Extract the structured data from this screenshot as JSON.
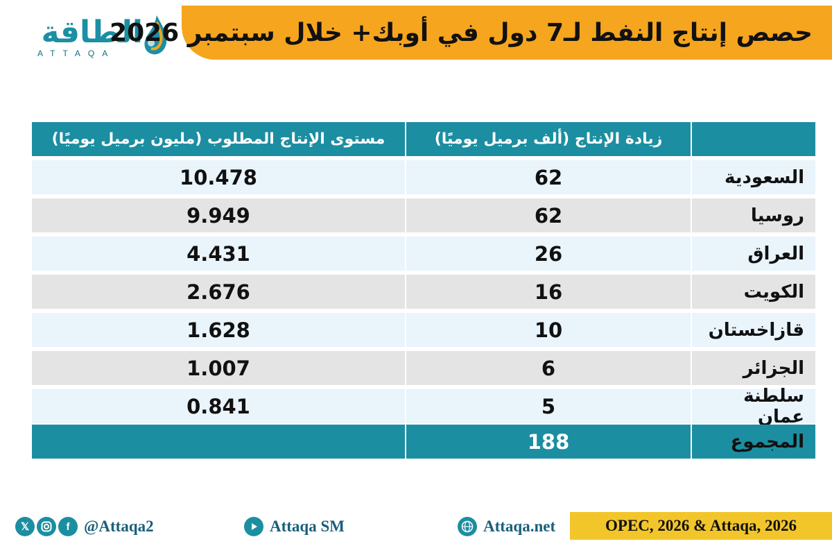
{
  "header": {
    "title": "حصص إنتاج النفط لـ7 دول في أوبك+ خلال سبتمبر 2026"
  },
  "logo": {
    "arabic": "الطاقة",
    "latin": "ATTAQA"
  },
  "table": {
    "headers": {
      "country": "",
      "increase": "زيادة الإنتاج (ألف برميل يوميًا)",
      "required_level": "مستوى الإنتاج المطلوب (مليون برميل يوميًا)"
    },
    "rows": [
      {
        "country": "السعودية",
        "increase": "62",
        "required_level": "10.478"
      },
      {
        "country": "روسيا",
        "increase": "62",
        "required_level": "9.949"
      },
      {
        "country": "العراق",
        "increase": "26",
        "required_level": "4.431"
      },
      {
        "country": "الكويت",
        "increase": "16",
        "required_level": "2.676"
      },
      {
        "country": "قازاخستان",
        "increase": "10",
        "required_level": "1.628"
      },
      {
        "country": "الجزائر",
        "increase": "6",
        "required_level": "1.007"
      },
      {
        "country": "سلطنة عمان",
        "increase": "5",
        "required_level": "0.841"
      }
    ],
    "total": {
      "label": "المجموع",
      "increase": "188",
      "required_level": ""
    }
  },
  "footer": {
    "social_handle": "@Attaqa2",
    "youtube": "Attaqa SM",
    "website": "Attaqa.net",
    "source": "OPEC, 2026 & Attaqa, 2026",
    "icons": [
      "x-icon",
      "instagram-icon",
      "facebook-icon",
      "youtube-icon",
      "globe-icon"
    ]
  },
  "colors": {
    "accent_orange": "#f6a51e",
    "teal": "#1c8ea1",
    "row_blue": "#e9f4fb",
    "row_gray": "#e4e4e4",
    "source_yellow": "#f2c52b"
  }
}
